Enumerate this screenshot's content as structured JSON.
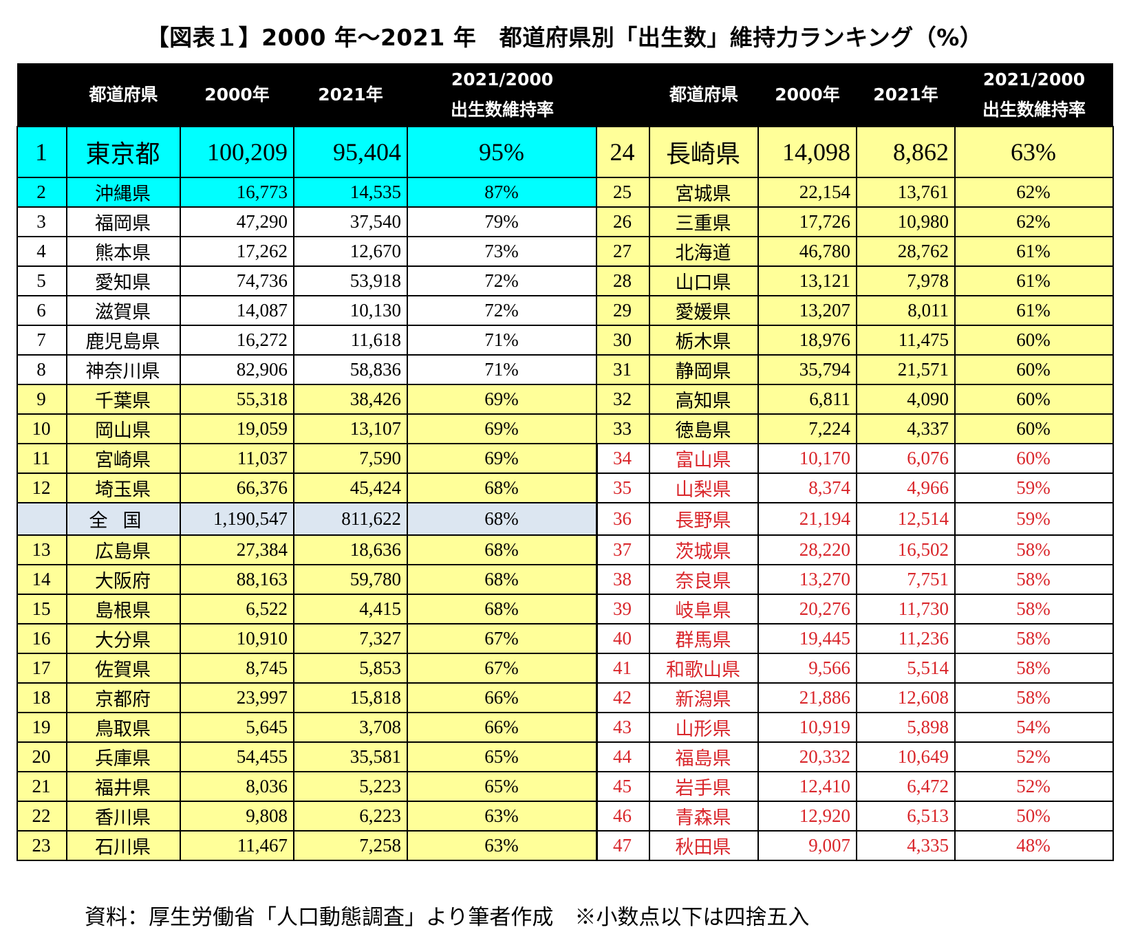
{
  "title": "【図表１】2000 年～2021 年　都道府県別「出生数」維持力ランキング（%）",
  "headers": {
    "rank": "",
    "prefecture": "都道府県",
    "y2000": "2000年",
    "y2021": "2021年",
    "ratio_line1": "2021/2000",
    "ratio_line2": "出生数維持率"
  },
  "left_rows": [
    {
      "rank": "1",
      "name": "東京都",
      "y2000": "100,209",
      "y2021": "95,404",
      "ratio": "95%",
      "style": "cyan top"
    },
    {
      "rank": "2",
      "name": "沖縄県",
      "y2000": "16,773",
      "y2021": "14,535",
      "ratio": "87%",
      "style": "cyan"
    },
    {
      "rank": "3",
      "name": "福岡県",
      "y2000": "47,290",
      "y2021": "37,540",
      "ratio": "79%",
      "style": "white"
    },
    {
      "rank": "4",
      "name": "熊本県",
      "y2000": "17,262",
      "y2021": "12,670",
      "ratio": "73%",
      "style": "white"
    },
    {
      "rank": "5",
      "name": "愛知県",
      "y2000": "74,736",
      "y2021": "53,918",
      "ratio": "72%",
      "style": "white"
    },
    {
      "rank": "6",
      "name": "滋賀県",
      "y2000": "14,087",
      "y2021": "10,130",
      "ratio": "72%",
      "style": "white"
    },
    {
      "rank": "7",
      "name": "鹿児島県",
      "y2000": "16,272",
      "y2021": "11,618",
      "ratio": "71%",
      "style": "white"
    },
    {
      "rank": "8",
      "name": "神奈川県",
      "y2000": "82,906",
      "y2021": "58,836",
      "ratio": "71%",
      "style": "white"
    },
    {
      "rank": "9",
      "name": "千葉県",
      "y2000": "55,318",
      "y2021": "38,426",
      "ratio": "69%",
      "style": "yellow"
    },
    {
      "rank": "10",
      "name": "岡山県",
      "y2000": "19,059",
      "y2021": "13,107",
      "ratio": "69%",
      "style": "yellow"
    },
    {
      "rank": "11",
      "name": "宮崎県",
      "y2000": "11,037",
      "y2021": "7,590",
      "ratio": "69%",
      "style": "yellow"
    },
    {
      "rank": "12",
      "name": "埼玉県",
      "y2000": "66,376",
      "y2021": "45,424",
      "ratio": "68%",
      "style": "yellow"
    },
    {
      "rank": "",
      "name": "全国",
      "y2000": "1,190,547",
      "y2021": "811,622",
      "ratio": "68%",
      "style": "national"
    },
    {
      "rank": "13",
      "name": "広島県",
      "y2000": "27,384",
      "y2021": "18,636",
      "ratio": "68%",
      "style": "yellow"
    },
    {
      "rank": "14",
      "name": "大阪府",
      "y2000": "88,163",
      "y2021": "59,780",
      "ratio": "68%",
      "style": "yellow"
    },
    {
      "rank": "15",
      "name": "島根県",
      "y2000": "6,522",
      "y2021": "4,415",
      "ratio": "68%",
      "style": "yellow"
    },
    {
      "rank": "16",
      "name": "大分県",
      "y2000": "10,910",
      "y2021": "7,327",
      "ratio": "67%",
      "style": "yellow"
    },
    {
      "rank": "17",
      "name": "佐賀県",
      "y2000": "8,745",
      "y2021": "5,853",
      "ratio": "67%",
      "style": "yellow"
    },
    {
      "rank": "18",
      "name": "京都府",
      "y2000": "23,997",
      "y2021": "15,818",
      "ratio": "66%",
      "style": "yellow"
    },
    {
      "rank": "19",
      "name": "鳥取県",
      "y2000": "5,645",
      "y2021": "3,708",
      "ratio": "66%",
      "style": "yellow"
    },
    {
      "rank": "20",
      "name": "兵庫県",
      "y2000": "54,455",
      "y2021": "35,581",
      "ratio": "65%",
      "style": "yellow"
    },
    {
      "rank": "21",
      "name": "福井県",
      "y2000": "8,036",
      "y2021": "5,223",
      "ratio": "65%",
      "style": "yellow"
    },
    {
      "rank": "22",
      "name": "香川県",
      "y2000": "9,808",
      "y2021": "6,223",
      "ratio": "63%",
      "style": "yellow"
    },
    {
      "rank": "23",
      "name": "石川県",
      "y2000": "11,467",
      "y2021": "7,258",
      "ratio": "63%",
      "style": "yellow"
    }
  ],
  "right_rows": [
    {
      "rank": "24",
      "name": "長崎県",
      "y2000": "14,098",
      "y2021": "8,862",
      "ratio": "63%",
      "style": "yellow top"
    },
    {
      "rank": "25",
      "name": "宮城県",
      "y2000": "22,154",
      "y2021": "13,761",
      "ratio": "62%",
      "style": "yellow"
    },
    {
      "rank": "26",
      "name": "三重県",
      "y2000": "17,726",
      "y2021": "10,980",
      "ratio": "62%",
      "style": "yellow"
    },
    {
      "rank": "27",
      "name": "北海道",
      "y2000": "46,780",
      "y2021": "28,762",
      "ratio": "61%",
      "style": "yellow"
    },
    {
      "rank": "28",
      "name": "山口県",
      "y2000": "13,121",
      "y2021": "7,978",
      "ratio": "61%",
      "style": "yellow"
    },
    {
      "rank": "29",
      "name": "愛媛県",
      "y2000": "13,207",
      "y2021": "8,011",
      "ratio": "61%",
      "style": "yellow"
    },
    {
      "rank": "30",
      "name": "栃木県",
      "y2000": "18,976",
      "y2021": "11,475",
      "ratio": "60%",
      "style": "yellow"
    },
    {
      "rank": "31",
      "name": "静岡県",
      "y2000": "35,794",
      "y2021": "21,571",
      "ratio": "60%",
      "style": "yellow"
    },
    {
      "rank": "32",
      "name": "高知県",
      "y2000": "6,811",
      "y2021": "4,090",
      "ratio": "60%",
      "style": "yellow"
    },
    {
      "rank": "33",
      "name": "徳島県",
      "y2000": "7,224",
      "y2021": "4,337",
      "ratio": "60%",
      "style": "yellow"
    },
    {
      "rank": "34",
      "name": "富山県",
      "y2000": "10,170",
      "y2021": "6,076",
      "ratio": "60%",
      "style": "red"
    },
    {
      "rank": "35",
      "name": "山梨県",
      "y2000": "8,374",
      "y2021": "4,966",
      "ratio": "59%",
      "style": "red"
    },
    {
      "rank": "36",
      "name": "長野県",
      "y2000": "21,194",
      "y2021": "12,514",
      "ratio": "59%",
      "style": "red tall"
    },
    {
      "rank": "37",
      "name": "茨城県",
      "y2000": "28,220",
      "y2021": "16,502",
      "ratio": "58%",
      "style": "red"
    },
    {
      "rank": "38",
      "name": "奈良県",
      "y2000": "13,270",
      "y2021": "7,751",
      "ratio": "58%",
      "style": "red"
    },
    {
      "rank": "39",
      "name": "岐阜県",
      "y2000": "20,276",
      "y2021": "11,730",
      "ratio": "58%",
      "style": "red"
    },
    {
      "rank": "40",
      "name": "群馬県",
      "y2000": "19,445",
      "y2021": "11,236",
      "ratio": "58%",
      "style": "red"
    },
    {
      "rank": "41",
      "name": "和歌山県",
      "y2000": "9,566",
      "y2021": "5,514",
      "ratio": "58%",
      "style": "red"
    },
    {
      "rank": "42",
      "name": "新潟県",
      "y2000": "21,886",
      "y2021": "12,608",
      "ratio": "58%",
      "style": "red"
    },
    {
      "rank": "43",
      "name": "山形県",
      "y2000": "10,919",
      "y2021": "5,898",
      "ratio": "54%",
      "style": "red"
    },
    {
      "rank": "44",
      "name": "福島県",
      "y2000": "20,332",
      "y2021": "10,649",
      "ratio": "52%",
      "style": "red"
    },
    {
      "rank": "45",
      "name": "岩手県",
      "y2000": "12,410",
      "y2021": "6,472",
      "ratio": "52%",
      "style": "red"
    },
    {
      "rank": "46",
      "name": "青森県",
      "y2000": "12,920",
      "y2021": "6,513",
      "ratio": "50%",
      "style": "red"
    },
    {
      "rank": "47",
      "name": "秋田県",
      "y2000": "9,007",
      "y2021": "4,335",
      "ratio": "48%",
      "style": "red"
    }
  ],
  "colors": {
    "header_bg": "#000000",
    "header_text": "#ffffff",
    "highlight_cyan": "#00ffff",
    "highlight_yellow": "#ffff99",
    "national_row": "#dce6f1",
    "lower_rank_text": "#d9262b"
  },
  "source_note": "資料：厚生労働省「人口動態調査」より筆者作成　※小数点以下は四捨五入"
}
